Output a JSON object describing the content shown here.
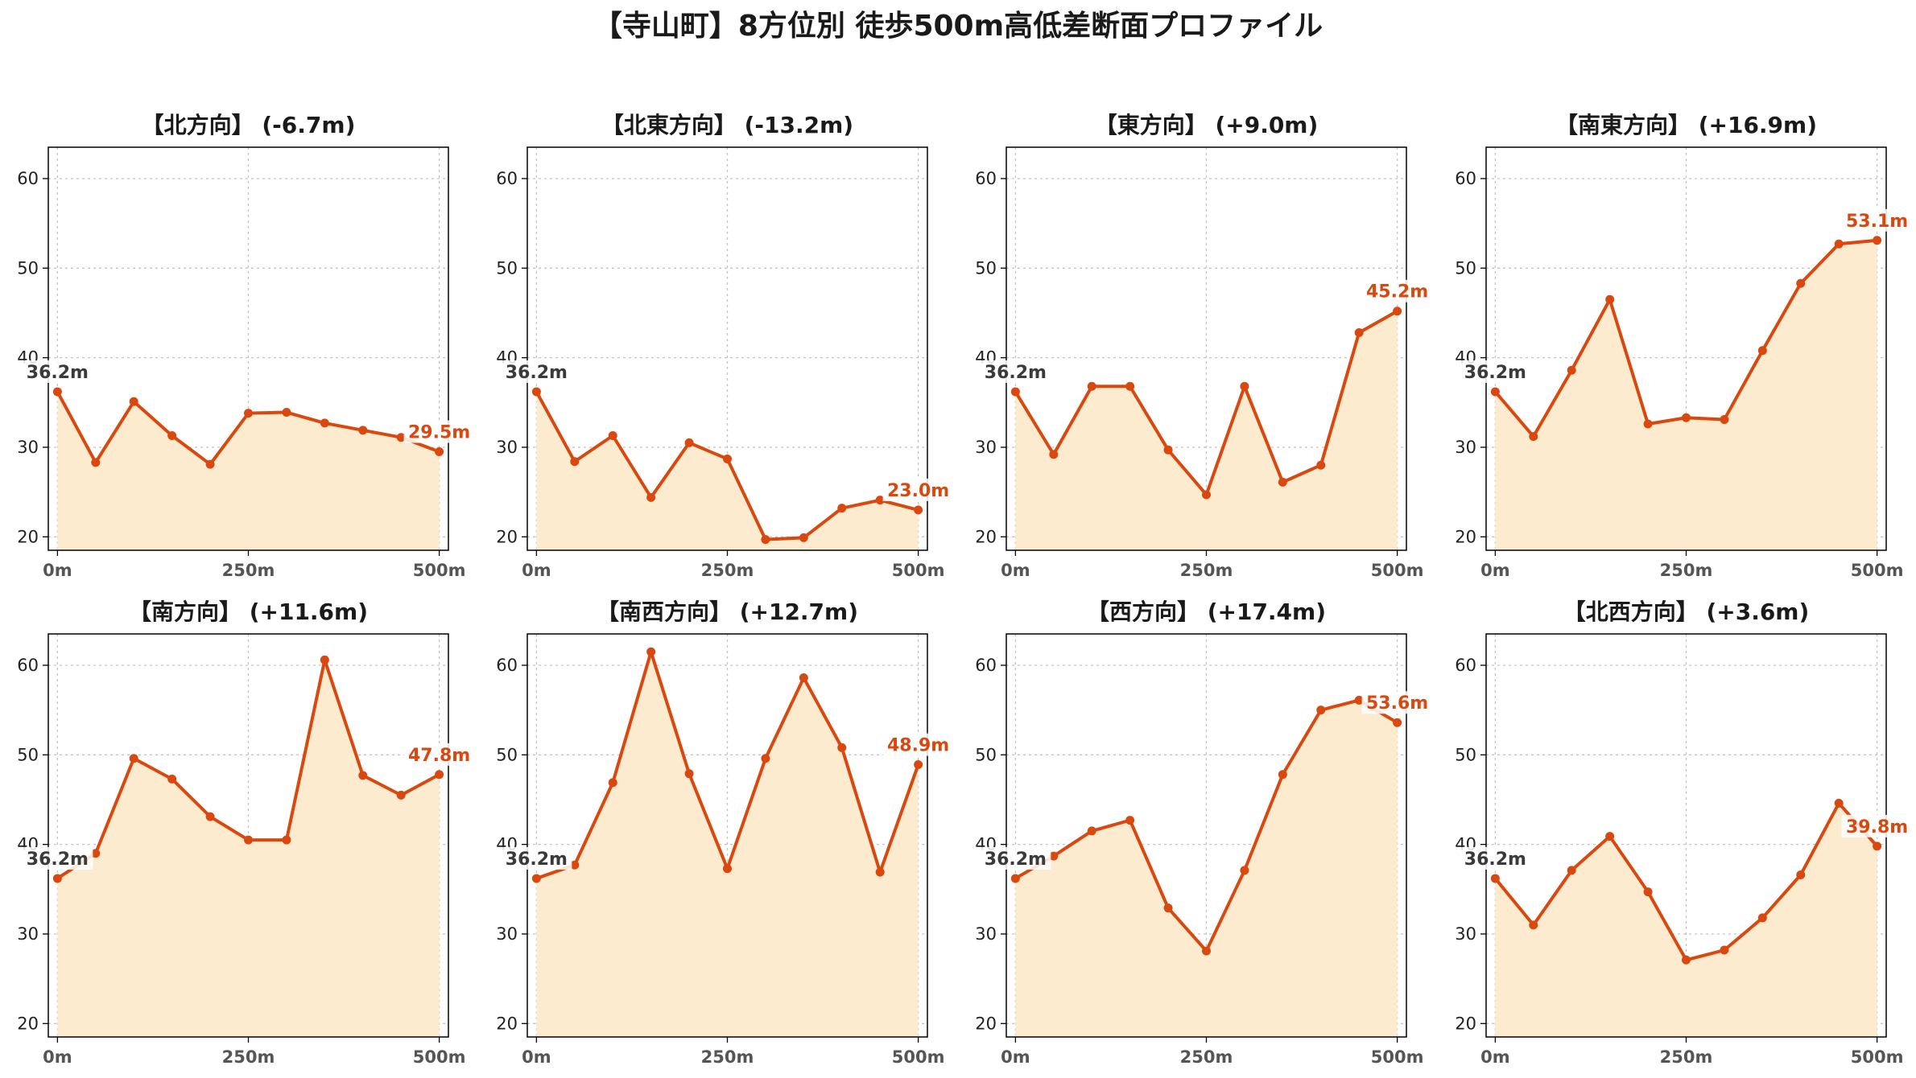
{
  "suptitle": "【寺山町】8方位別 徒歩500m高低差断面プロファイル",
  "colors": {
    "line": "#d9480f",
    "fill": "#fdebd0",
    "start_label": "#3a3a3a",
    "end_label": "#d9480f"
  },
  "chart_data": [
    {
      "type": "area",
      "title": "【北方向】 (-6.7m)",
      "x": [
        0,
        50,
        100,
        150,
        200,
        250,
        300,
        350,
        400,
        450,
        500
      ],
      "y": [
        36.2,
        28.3,
        35.1,
        31.3,
        28.1,
        33.8,
        33.9,
        32.7,
        31.9,
        31.1,
        29.5
      ],
      "xticks": [
        "0m",
        "250m",
        "500m"
      ],
      "yticks": [
        "20",
        "30",
        "40",
        "50",
        "60"
      ],
      "ylim": [
        18.5,
        63.5
      ],
      "xlim": [
        -12,
        512
      ],
      "grid": true,
      "start_label": "36.2m",
      "end_label": "29.5m"
    },
    {
      "type": "area",
      "title": "【北東方向】 (-13.2m)",
      "x": [
        0,
        50,
        100,
        150,
        200,
        250,
        300,
        350,
        400,
        450,
        500
      ],
      "y": [
        36.2,
        28.4,
        31.3,
        24.4,
        30.5,
        28.7,
        19.7,
        19.9,
        23.2,
        24.1,
        23.0
      ],
      "xticks": [
        "0m",
        "250m",
        "500m"
      ],
      "yticks": [
        "20",
        "30",
        "40",
        "50",
        "60"
      ],
      "ylim": [
        18.5,
        63.5
      ],
      "xlim": [
        -12,
        512
      ],
      "grid": true,
      "start_label": "36.2m",
      "end_label": "23.0m"
    },
    {
      "type": "area",
      "title": "【東方向】 (+9.0m)",
      "x": [
        0,
        50,
        100,
        150,
        200,
        250,
        300,
        350,
        400,
        450,
        500
      ],
      "y": [
        36.2,
        29.2,
        36.8,
        36.8,
        29.7,
        24.7,
        36.8,
        26.1,
        28.0,
        42.8,
        45.2
      ],
      "xticks": [
        "0m",
        "250m",
        "500m"
      ],
      "yticks": [
        "20",
        "30",
        "40",
        "50",
        "60"
      ],
      "ylim": [
        18.5,
        63.5
      ],
      "xlim": [
        -12,
        512
      ],
      "grid": true,
      "start_label": "36.2m",
      "end_label": "45.2m"
    },
    {
      "type": "area",
      "title": "【南東方向】 (+16.9m)",
      "x": [
        0,
        50,
        100,
        150,
        200,
        250,
        300,
        350,
        400,
        450,
        500
      ],
      "y": [
        36.2,
        31.2,
        38.6,
        46.5,
        32.6,
        33.3,
        33.1,
        40.8,
        48.3,
        52.7,
        53.1
      ],
      "xticks": [
        "0m",
        "250m",
        "500m"
      ],
      "yticks": [
        "20",
        "30",
        "40",
        "50",
        "60"
      ],
      "ylim": [
        18.5,
        63.5
      ],
      "xlim": [
        -12,
        512
      ],
      "grid": true,
      "start_label": "36.2m",
      "end_label": "53.1m"
    },
    {
      "type": "area",
      "title": "【南方向】 (+11.6m)",
      "x": [
        0,
        50,
        100,
        150,
        200,
        250,
        300,
        350,
        400,
        450,
        500
      ],
      "y": [
        36.2,
        39.0,
        49.6,
        47.3,
        43.1,
        40.5,
        40.5,
        60.6,
        47.7,
        45.5,
        47.8
      ],
      "xticks": [
        "0m",
        "250m",
        "500m"
      ],
      "yticks": [
        "20",
        "30",
        "40",
        "50",
        "60"
      ],
      "ylim": [
        18.5,
        63.5
      ],
      "xlim": [
        -12,
        512
      ],
      "grid": true,
      "start_label": "36.2m",
      "end_label": "47.8m"
    },
    {
      "type": "area",
      "title": "【南西方向】 (+12.7m)",
      "x": [
        0,
        50,
        100,
        150,
        200,
        250,
        300,
        350,
        400,
        450,
        500
      ],
      "y": [
        36.2,
        37.7,
        46.9,
        61.5,
        47.9,
        37.3,
        49.6,
        58.6,
        50.8,
        36.9,
        48.9
      ],
      "xticks": [
        "0m",
        "250m",
        "500m"
      ],
      "yticks": [
        "20",
        "30",
        "40",
        "50",
        "60"
      ],
      "ylim": [
        18.5,
        63.5
      ],
      "xlim": [
        -12,
        512
      ],
      "grid": true,
      "start_label": "36.2m",
      "end_label": "48.9m"
    },
    {
      "type": "area",
      "title": "【西方向】 (+17.4m)",
      "x": [
        0,
        50,
        100,
        150,
        200,
        250,
        300,
        350,
        400,
        450,
        500
      ],
      "y": [
        36.2,
        38.7,
        41.5,
        42.7,
        32.9,
        28.1,
        37.1,
        47.8,
        55.0,
        56.1,
        53.6
      ],
      "xticks": [
        "0m",
        "250m",
        "500m"
      ],
      "yticks": [
        "20",
        "30",
        "40",
        "50",
        "60"
      ],
      "ylim": [
        18.5,
        63.5
      ],
      "xlim": [
        -12,
        512
      ],
      "grid": true,
      "start_label": "36.2m",
      "end_label": "53.6m"
    },
    {
      "type": "area",
      "title": "【北西方向】 (+3.6m)",
      "x": [
        0,
        50,
        100,
        150,
        200,
        250,
        300,
        350,
        400,
        450,
        500
      ],
      "y": [
        36.2,
        31.0,
        37.1,
        40.9,
        34.7,
        27.1,
        28.2,
        31.8,
        36.6,
        44.6,
        39.8
      ],
      "xticks": [
        "0m",
        "250m",
        "500m"
      ],
      "yticks": [
        "20",
        "30",
        "40",
        "50",
        "60"
      ],
      "ylim": [
        18.5,
        63.5
      ],
      "xlim": [
        -12,
        512
      ],
      "grid": true,
      "start_label": "36.2m",
      "end_label": "39.8m"
    }
  ]
}
